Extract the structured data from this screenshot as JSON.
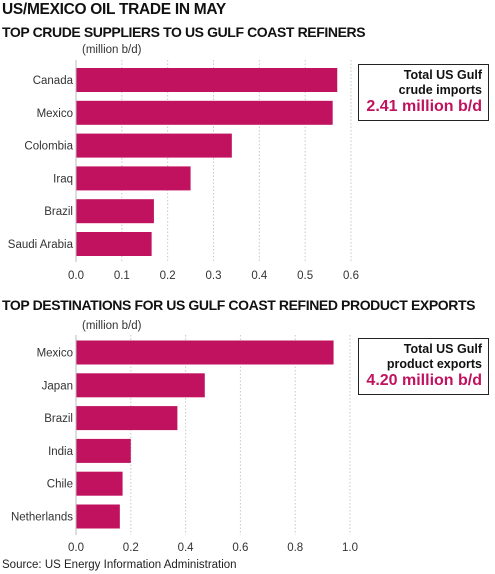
{
  "title": "US/MEXICO OIL TRADE IN MAY",
  "source": "Source: US Energy Information Administration",
  "colors": {
    "bar": "#c0125e",
    "callout_value": "#c0125e",
    "grid": "#c8c8c8"
  },
  "chart_data": [
    {
      "type": "bar",
      "orientation": "horizontal",
      "title": "TOP CRUDE SUPPLIERS TO US GULF COAST REFINERS",
      "unit_label": "(million b/d)",
      "categories": [
        "Canada",
        "Mexico",
        "Colombia",
        "Iraq",
        "Brazil",
        "Saudi Arabia"
      ],
      "values": [
        0.57,
        0.56,
        0.34,
        0.25,
        0.17,
        0.165
      ],
      "xlim": [
        0,
        0.6
      ],
      "ticks": [
        0,
        0.1,
        0.2,
        0.3,
        0.4,
        0.5,
        0.6
      ],
      "tick_labels": [
        "0.0",
        "0.1",
        "0.2",
        "0.3",
        "0.4",
        "0.5",
        "0.6"
      ],
      "grid": true,
      "callout": {
        "line1": "Total US Gulf",
        "line2": "crude imports",
        "value": "2.41 million b/d"
      }
    },
    {
      "type": "bar",
      "orientation": "horizontal",
      "title": "TOP DESTINATIONS FOR US GULF COAST REFINED PRODUCT EXPORTS",
      "unit_label": "(million b/d)",
      "categories": [
        "Mexico",
        "Japan",
        "Brazil",
        "India",
        "Chile",
        "Netherlands"
      ],
      "values": [
        0.94,
        0.47,
        0.37,
        0.2,
        0.17,
        0.16
      ],
      "xlim": [
        0,
        1.0
      ],
      "ticks": [
        0,
        0.2,
        0.4,
        0.6,
        0.8,
        1.0
      ],
      "tick_labels": [
        "0.0",
        "0.2",
        "0.4",
        "0.6",
        "0.8",
        "1.0"
      ],
      "grid": true,
      "callout": {
        "line1": "Total US Gulf",
        "line2": "product exports",
        "value": "4.20 million b/d"
      }
    }
  ]
}
